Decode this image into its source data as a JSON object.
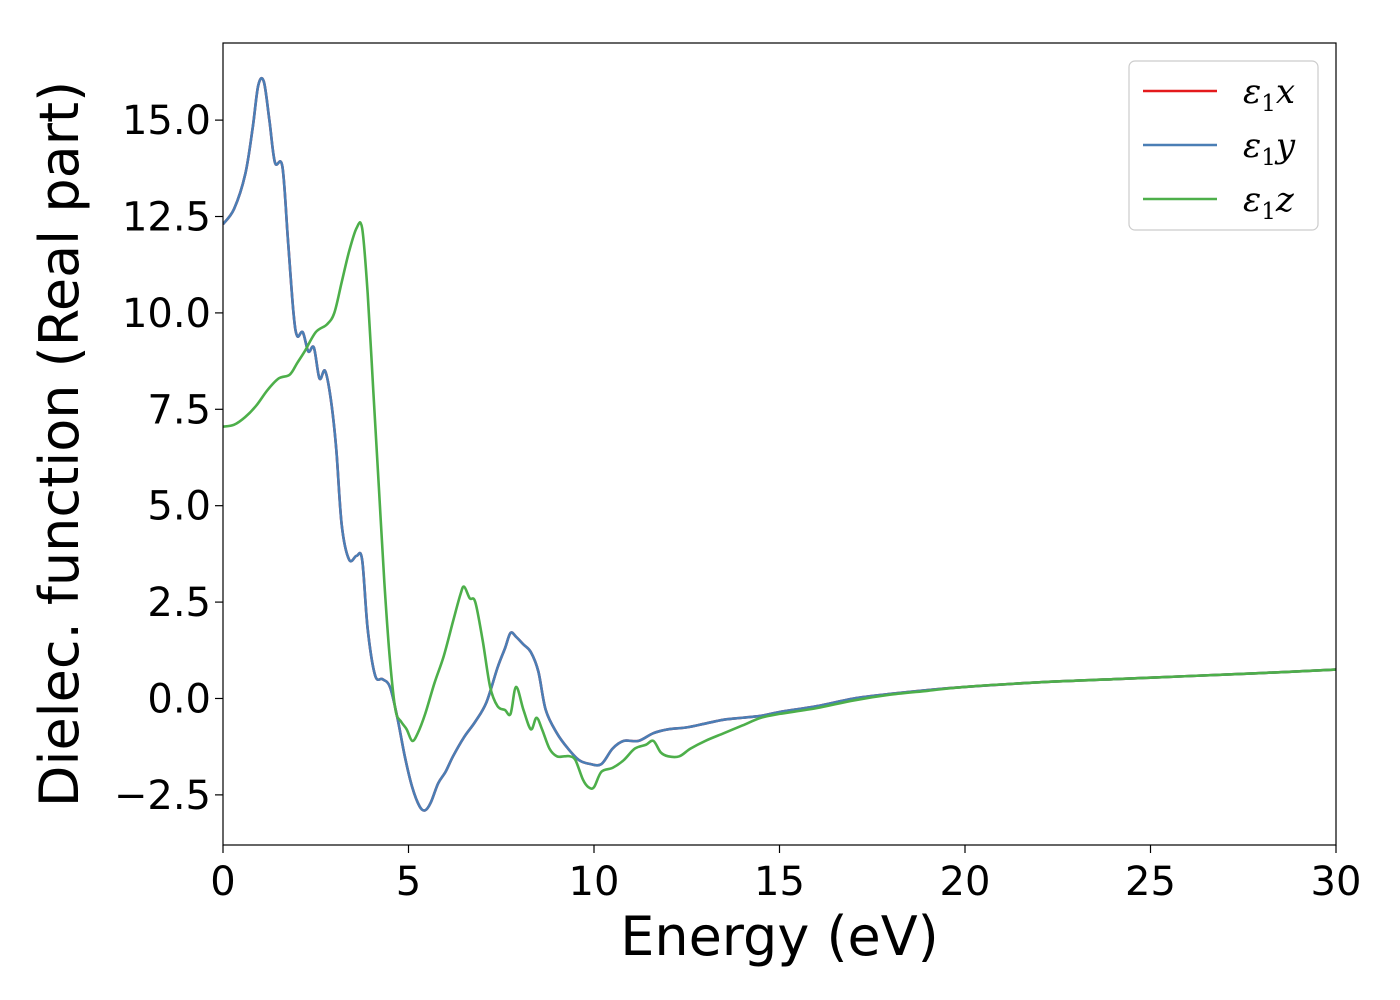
{
  "chart_data": {
    "type": "line",
    "title": "",
    "xlabel": "Energy (eV)",
    "ylabel": "Dielec. function (Real part)",
    "xlim": [
      0,
      30
    ],
    "ylim": [
      -3.8,
      17.0
    ],
    "xticks": [
      0,
      5,
      10,
      15,
      20,
      25,
      30
    ],
    "xtick_labels": [
      "0",
      "5",
      "10",
      "15",
      "20",
      "25",
      "30"
    ],
    "yticks": [
      -2.5,
      0.0,
      2.5,
      5.0,
      7.5,
      10.0,
      12.5,
      15.0
    ],
    "ytick_labels": [
      "−2.5",
      "0.0",
      "2.5",
      "5.0",
      "7.5",
      "10.0",
      "12.5",
      "15.0"
    ],
    "grid": false,
    "legend_position": "top-right",
    "series": [
      {
        "name": "ε1x",
        "legend_symbol": "ε",
        "legend_sub": "1",
        "legend_suffix": "x",
        "color": "#e41a1c",
        "x": [
          0,
          0.3,
          0.6,
          0.8,
          0.95,
          1.1,
          1.25,
          1.4,
          1.6,
          1.75,
          1.9,
          2.0,
          2.15,
          2.3,
          2.45,
          2.6,
          2.75,
          2.9,
          3.05,
          3.2,
          3.4,
          3.6,
          3.75,
          3.9,
          4.1,
          4.3,
          4.5,
          4.7,
          4.9,
          5.1,
          5.3,
          5.45,
          5.6,
          5.8,
          6.0,
          6.2,
          6.5,
          6.8,
          7.1,
          7.4,
          7.6,
          7.75,
          7.9,
          8.1,
          8.3,
          8.5,
          8.7,
          9.0,
          9.3,
          9.6,
          9.9,
          10.2,
          10.5,
          10.8,
          11.2,
          11.6,
          12.0,
          12.5,
          13.0,
          13.5,
          14.0,
          14.5,
          15.0,
          16.0,
          17.0,
          18.0,
          19.0,
          20.0,
          22.0,
          24.0,
          26.0,
          28.0,
          30.0
        ],
        "y": [
          12.3,
          12.7,
          13.6,
          14.8,
          15.9,
          16.0,
          15.0,
          13.9,
          13.8,
          11.9,
          10.0,
          9.4,
          9.5,
          9.0,
          9.1,
          8.3,
          8.5,
          7.8,
          6.5,
          4.5,
          3.6,
          3.7,
          3.6,
          1.8,
          0.6,
          0.5,
          0.3,
          -0.5,
          -1.5,
          -2.3,
          -2.8,
          -2.9,
          -2.7,
          -2.2,
          -1.9,
          -1.5,
          -1.0,
          -0.6,
          -0.1,
          0.8,
          1.3,
          1.7,
          1.6,
          1.4,
          1.2,
          0.7,
          -0.3,
          -0.9,
          -1.3,
          -1.6,
          -1.7,
          -1.7,
          -1.3,
          -1.1,
          -1.1,
          -0.9,
          -0.8,
          -0.75,
          -0.65,
          -0.55,
          -0.5,
          -0.45,
          -0.35,
          -0.2,
          0.0,
          0.12,
          0.22,
          0.3,
          0.42,
          0.5,
          0.58,
          0.66,
          0.75
        ]
      },
      {
        "name": "ε1y",
        "legend_symbol": "ε",
        "legend_sub": "1",
        "legend_suffix": "y",
        "color": "#4a7eb5",
        "x": [
          0,
          0.3,
          0.6,
          0.8,
          0.95,
          1.1,
          1.25,
          1.4,
          1.6,
          1.75,
          1.9,
          2.0,
          2.15,
          2.3,
          2.45,
          2.6,
          2.75,
          2.9,
          3.05,
          3.2,
          3.4,
          3.6,
          3.75,
          3.9,
          4.1,
          4.3,
          4.5,
          4.7,
          4.9,
          5.1,
          5.3,
          5.45,
          5.6,
          5.8,
          6.0,
          6.2,
          6.5,
          6.8,
          7.1,
          7.4,
          7.6,
          7.75,
          7.9,
          8.1,
          8.3,
          8.5,
          8.7,
          9.0,
          9.3,
          9.6,
          9.9,
          10.2,
          10.5,
          10.8,
          11.2,
          11.6,
          12.0,
          12.5,
          13.0,
          13.5,
          14.0,
          14.5,
          15.0,
          16.0,
          17.0,
          18.0,
          19.0,
          20.0,
          22.0,
          24.0,
          26.0,
          28.0,
          30.0
        ],
        "y": [
          12.3,
          12.7,
          13.6,
          14.8,
          15.9,
          16.0,
          15.0,
          13.9,
          13.8,
          11.9,
          10.0,
          9.4,
          9.5,
          9.0,
          9.1,
          8.3,
          8.5,
          7.8,
          6.5,
          4.5,
          3.6,
          3.7,
          3.6,
          1.8,
          0.6,
          0.5,
          0.3,
          -0.5,
          -1.5,
          -2.3,
          -2.8,
          -2.9,
          -2.7,
          -2.2,
          -1.9,
          -1.5,
          -1.0,
          -0.6,
          -0.1,
          0.8,
          1.3,
          1.7,
          1.6,
          1.4,
          1.2,
          0.7,
          -0.3,
          -0.9,
          -1.3,
          -1.6,
          -1.7,
          -1.7,
          -1.3,
          -1.1,
          -1.1,
          -0.9,
          -0.8,
          -0.75,
          -0.65,
          -0.55,
          -0.5,
          -0.45,
          -0.35,
          -0.2,
          0.0,
          0.12,
          0.22,
          0.3,
          0.42,
          0.5,
          0.58,
          0.66,
          0.75
        ]
      },
      {
        "name": "ε1z",
        "legend_symbol": "ε",
        "legend_sub": "1",
        "legend_suffix": "z",
        "color": "#4daf4a",
        "x": [
          0,
          0.3,
          0.6,
          0.9,
          1.2,
          1.5,
          1.8,
          2.0,
          2.2,
          2.5,
          2.8,
          3.0,
          3.2,
          3.4,
          3.6,
          3.75,
          3.9,
          4.05,
          4.2,
          4.35,
          4.5,
          4.65,
          4.8,
          4.95,
          5.1,
          5.25,
          5.45,
          5.7,
          5.95,
          6.2,
          6.4,
          6.5,
          6.65,
          6.8,
          7.0,
          7.2,
          7.4,
          7.6,
          7.75,
          7.9,
          8.1,
          8.3,
          8.45,
          8.6,
          8.8,
          9.0,
          9.2,
          9.35,
          9.5,
          9.7,
          9.85,
          10.0,
          10.2,
          10.5,
          10.8,
          11.1,
          11.4,
          11.6,
          11.8,
          12.0,
          12.3,
          12.6,
          13.0,
          13.5,
          14.0,
          14.5,
          15.0,
          16.0,
          17.0,
          18.0,
          19.0,
          20.0,
          22.0,
          24.0,
          26.0,
          28.0,
          30.0
        ],
        "y": [
          7.05,
          7.1,
          7.3,
          7.6,
          8.0,
          8.3,
          8.4,
          8.7,
          9.0,
          9.5,
          9.7,
          10.0,
          10.8,
          11.6,
          12.2,
          12.2,
          10.5,
          8.0,
          5.5,
          3.0,
          1.0,
          -0.3,
          -0.6,
          -0.8,
          -1.1,
          -0.9,
          -0.4,
          0.4,
          1.1,
          2.0,
          2.7,
          2.9,
          2.6,
          2.5,
          1.5,
          0.3,
          -0.2,
          -0.3,
          -0.4,
          0.3,
          -0.3,
          -0.8,
          -0.5,
          -0.8,
          -1.3,
          -1.5,
          -1.5,
          -1.5,
          -1.6,
          -2.1,
          -2.3,
          -2.3,
          -1.9,
          -1.8,
          -1.6,
          -1.3,
          -1.2,
          -1.1,
          -1.4,
          -1.5,
          -1.5,
          -1.3,
          -1.1,
          -0.9,
          -0.7,
          -0.5,
          -0.4,
          -0.25,
          -0.05,
          0.1,
          0.2,
          0.3,
          0.42,
          0.5,
          0.58,
          0.66,
          0.75
        ]
      }
    ]
  }
}
